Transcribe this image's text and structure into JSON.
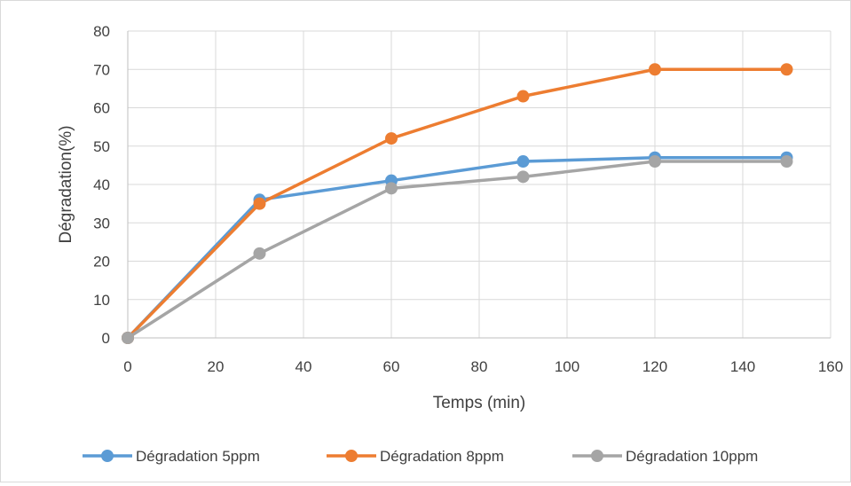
{
  "chart_data": {
    "type": "line",
    "title": "",
    "xlabel": "Temps (min)",
    "ylabel": "Dégradation(%)",
    "xlim": [
      0,
      160
    ],
    "ylim": [
      0,
      80
    ],
    "xticks": [
      0,
      20,
      40,
      60,
      80,
      100,
      120,
      140,
      160
    ],
    "yticks": [
      0,
      10,
      20,
      30,
      40,
      50,
      60,
      70,
      80
    ],
    "grid": true,
    "legend_position": "bottom",
    "x": [
      0,
      30,
      60,
      90,
      120,
      150
    ],
    "series": [
      {
        "name": "Dégradation 5ppm",
        "color": "#5b9bd5",
        "values": [
          0,
          36,
          41,
          46,
          47,
          47
        ]
      },
      {
        "name": "Dégradation 8ppm",
        "color": "#ed7d31",
        "values": [
          0,
          35,
          52,
          63,
          70,
          70
        ]
      },
      {
        "name": "Dégradation 10ppm",
        "color": "#a5a5a5",
        "values": [
          0,
          22,
          39,
          42,
          46,
          46
        ]
      }
    ]
  }
}
